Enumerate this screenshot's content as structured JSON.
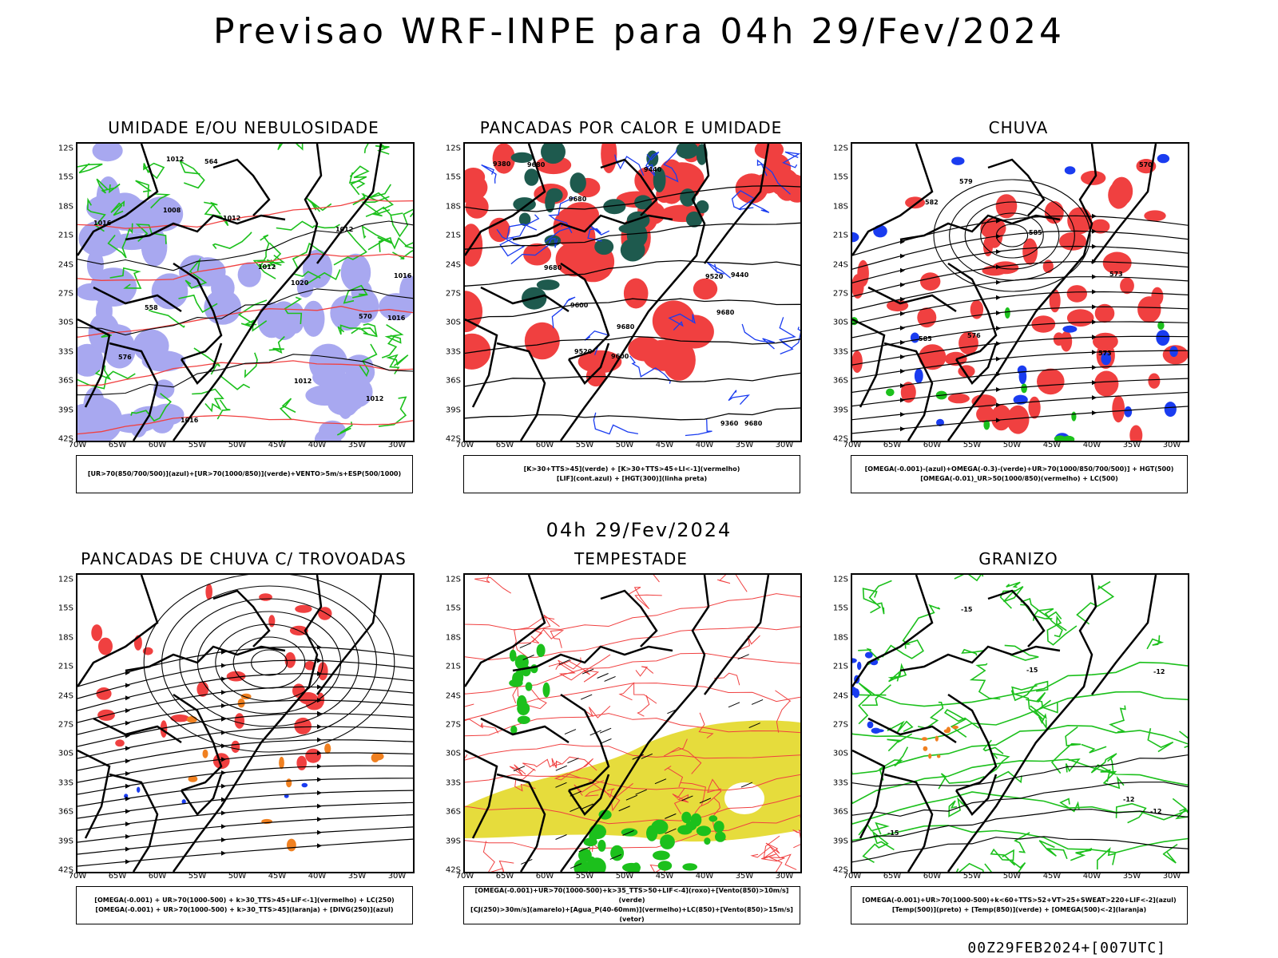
{
  "title": "Previsao WRF-INPE  para 04h 29/Fev/2024",
  "subtitle": "04h 29/Fev/2024",
  "footer": "00Z29FEB2024+[007UTC]",
  "lat_labels": [
    "12S",
    "15S",
    "18S",
    "21S",
    "24S",
    "27S",
    "30S",
    "33S",
    "36S",
    "39S",
    "42S"
  ],
  "lon_labels": [
    "70W",
    "65W",
    "60W",
    "55W",
    "50W",
    "45W",
    "40W",
    "35W",
    "30W"
  ],
  "colors": {
    "red": "#f04040",
    "green": "#1cc01c",
    "blue": "#1a3cf0",
    "lavender": "#a8a8f0",
    "teal": "#1e5a4e",
    "orange": "#f08020",
    "yellow": "#e6dc3c",
    "black": "#000000"
  },
  "panels": [
    {
      "id": "umidade",
      "title": "UMIDADE E/OU NEBULOSIDADE",
      "legend": [
        "[UR>70(850/700/500)](azul)+[UR>70(1000/850)](verde)+VENTO>5m/s+ESP(500/1000)"
      ],
      "contour_labels": [
        "1016",
        "1012",
        "1012",
        "1012",
        "1008",
        "1016",
        "1012",
        "1012",
        "1016",
        "1020",
        "1016",
        "1012",
        "576",
        "570",
        "564",
        "558"
      ]
    },
    {
      "id": "pancadas-calor",
      "title": "PANCADAS POR CALOR E UMIDADE",
      "legend": [
        "[K>30+TTS>45](verde) + [K>30+TTS>45+LI<-1](vermelho)",
        "[LIF](cont.azul) + [HGT(300)](linha preta)"
      ],
      "contour_labels": [
        "9680",
        "9680",
        "9680",
        "9680",
        "9680",
        "9680",
        "9600",
        "9600",
        "9520",
        "9520",
        "9440",
        "9440",
        "9380",
        "9360"
      ]
    },
    {
      "id": "chuva",
      "title": "CHUVA",
      "legend": [
        "[OMEGA(-0.001)-(azul)+OMEGA(-0.3)-(verde)+UR>70(1000/850/700/500)] + HGT(500)",
        "[OMEGA(-0.01)_UR>50(1000/850)(vermelho) + LC(500)"
      ],
      "contour_labels": [
        "585",
        "585",
        "582",
        "579",
        "576",
        "573",
        "573",
        "570"
      ]
    },
    {
      "id": "pancadas-trovoadas",
      "title": "PANCADAS DE CHUVA C/ TROVOADAS",
      "legend": [
        "[OMEGA(-0.001) + UR>70(1000-500) + k>30_TTS>45+LIF<-1](vermelho) + LC(250)",
        "[OMEGA(-0.001) + UR>70(1000-500) + k>30_TTS>45](laranja) + [DIVG(250)](azul)"
      ],
      "contour_labels": []
    },
    {
      "id": "tempestade",
      "title": "TEMPESTADE",
      "legend": [
        "[OMEGA(-0.001)+UR>70(1000-500)+k>35_TTS>50+LIF<-4](roxo)+[Vento(850)>10m/s](verde)",
        "[CJ(250)>30m/s](amarelo)+[Agua_P(40-60mm)](vermelho)+LC(850)+[Vento(850)>15m/s](vetor)"
      ],
      "contour_labels": []
    },
    {
      "id": "granizo",
      "title": "GRANIZO",
      "legend": [
        "[OMEGA(-0.001)+UR>70(1000-500)+k<60+TTS>52+VT>25+SWEAT>220+LIF<-2](azul)",
        "[Temp(500)](preto) + [Temp(850)](verde) + [OMEGA(500)<-2](laranja)"
      ],
      "contour_labels": [
        "-12",
        "-12",
        "-12",
        "-15",
        "-15",
        "-15"
      ]
    }
  ]
}
